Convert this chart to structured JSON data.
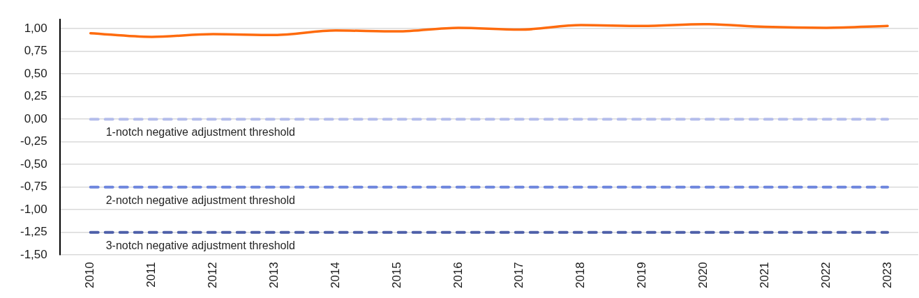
{
  "chart_data": {
    "type": "line",
    "categories": [
      "2010",
      "2011",
      "2012",
      "2013",
      "2014",
      "2015",
      "2016",
      "2017",
      "2018",
      "2019",
      "2020",
      "2021",
      "2022",
      "2023"
    ],
    "values": [
      0.95,
      0.91,
      0.94,
      0.93,
      0.98,
      0.97,
      1.01,
      0.99,
      1.04,
      1.03,
      1.05,
      1.02,
      1.01,
      1.03
    ],
    "color": "#fe6b0e",
    "marker": "none",
    "line_style": "solid",
    "ylim": [
      -1.5,
      1.1
    ],
    "yticks": [
      {
        "value": -1.5,
        "label": "-1,50"
      },
      {
        "value": -1.25,
        "label": "-1,25"
      },
      {
        "value": -1,
        "label": "-1,00"
      },
      {
        "value": -0.75,
        "label": "-0,75"
      },
      {
        "value": -0.5,
        "label": "-0,50"
      },
      {
        "value": -0.25,
        "label": "-0,25"
      },
      {
        "value": 0,
        "label": "0,00"
      },
      {
        "value": 0.25,
        "label": "0,25"
      },
      {
        "value": 0.5,
        "label": "0,50"
      },
      {
        "value": 0.75,
        "label": "0,75"
      },
      {
        "value": 1,
        "label": "1,00"
      }
    ],
    "grid": "y",
    "ref_lines": [
      {
        "axis": "y",
        "value": 0,
        "label": "1-notch negative adjustment threshold",
        "color": "#b4bdeb",
        "line_style": "dashed"
      },
      {
        "axis": "y",
        "value": -0.75,
        "label": "2-notch negative adjustment threshold",
        "color": "#6e86dd",
        "line_style": "dashed"
      },
      {
        "axis": "y",
        "value": -1.25,
        "label": "3-notch negative adjustment threshold",
        "color": "#4e60a9",
        "line_style": "dashed"
      }
    ]
  }
}
